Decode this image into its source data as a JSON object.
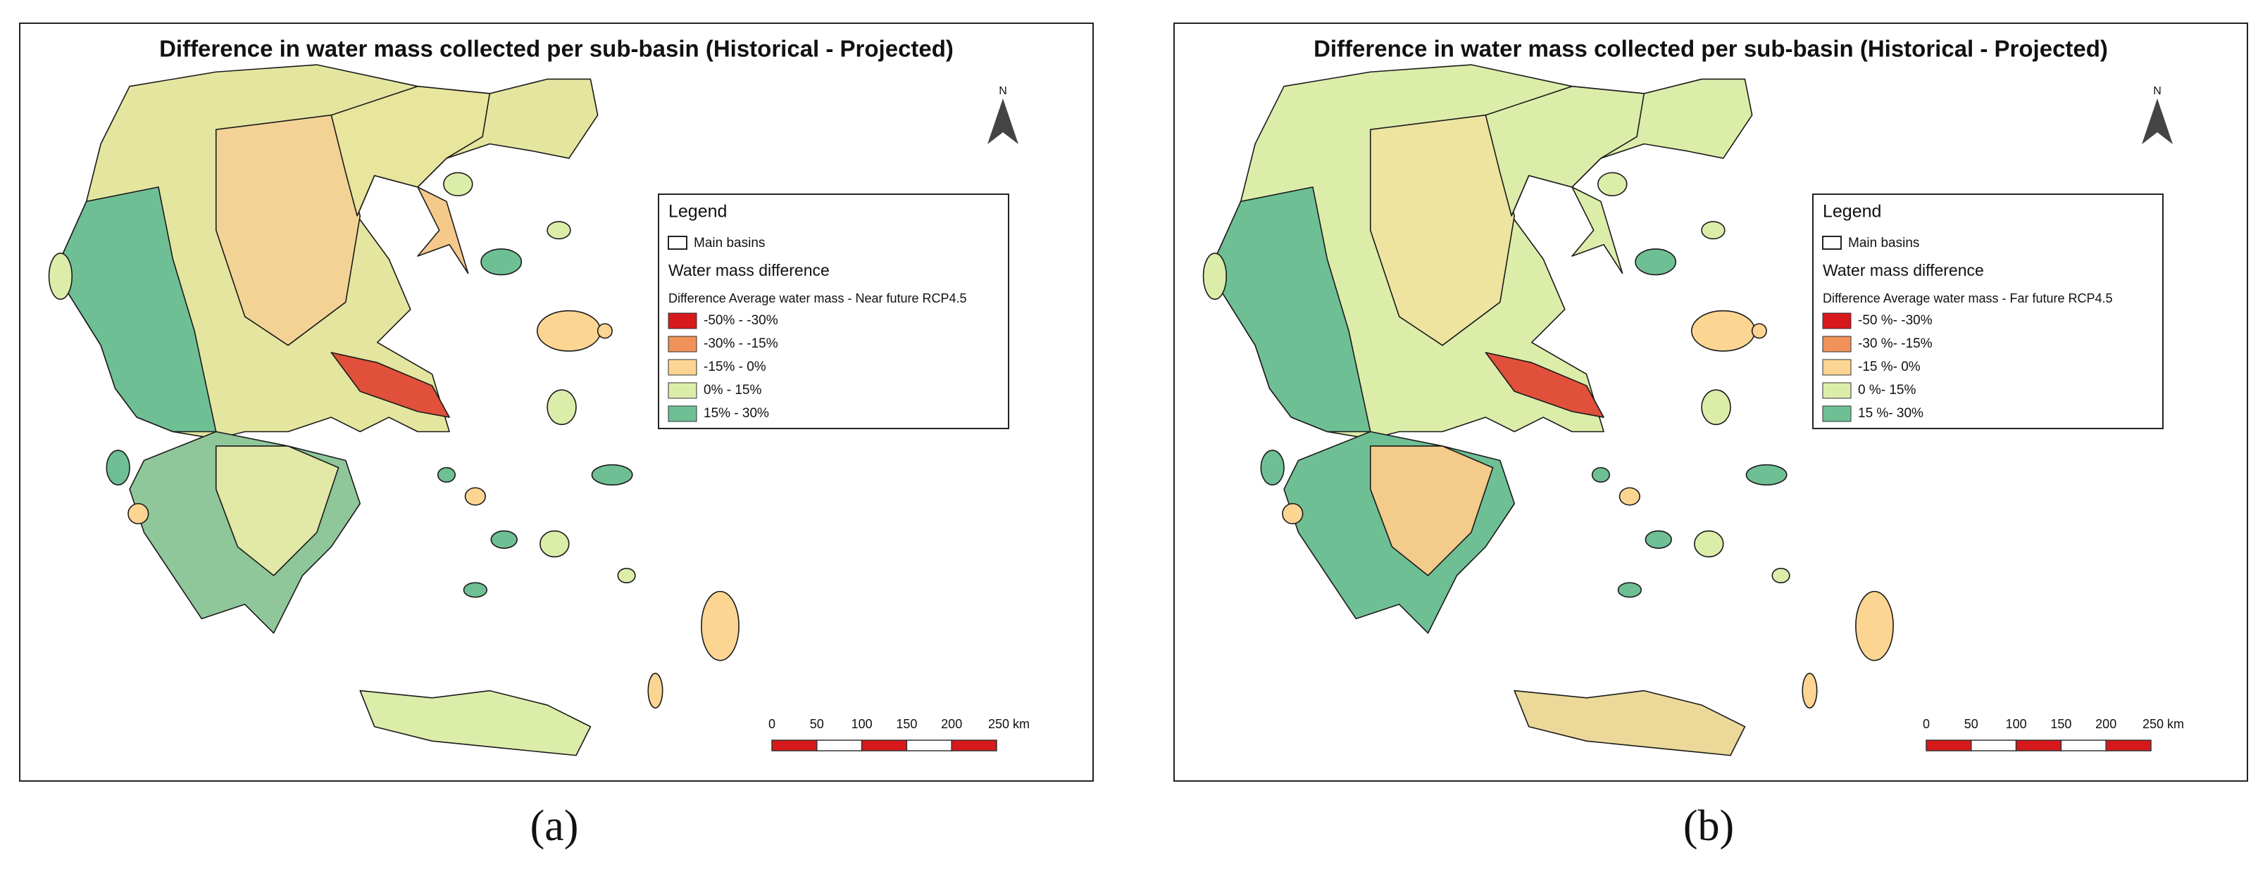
{
  "panels": [
    {
      "title": "Difference in water mass collected per sub-basin (Historical - Projected)",
      "north": "N",
      "legend": {
        "title": "Legend",
        "main_basins": "Main basins",
        "group": "Water mass difference",
        "subtitle": "Difference Average water mass - Near future RCP4.5",
        "items": [
          {
            "label": "-50% - -30%",
            "color": "#d7191c"
          },
          {
            "label": "-30% - -15%",
            "color": "#f0925a"
          },
          {
            "label": "-15% - 0%",
            "color": "#fdd592"
          },
          {
            "label": "0% - 15%",
            "color": "#dcedaa"
          },
          {
            "label": "15% - 30%",
            "color": "#6fbf95"
          }
        ]
      },
      "scale": [
        "0",
        "50",
        "100",
        "150",
        "200",
        "250 km"
      ],
      "label": "(a)"
    },
    {
      "title": "Difference in water mass collected per sub-basin (Historical - Projected)",
      "north": "N",
      "legend": {
        "title": "Legend",
        "main_basins": "Main basins",
        "group": "Water mass difference",
        "subtitle": "Difference Average water mass - Far future RCP4.5",
        "items": [
          {
            "label": "-50 %- -30%",
            "color": "#d7191c"
          },
          {
            "label": "-30 %- -15%",
            "color": "#f0925a"
          },
          {
            "label": "-15 %- 0%",
            "color": "#fdd592"
          },
          {
            "label": "0 %- 15%",
            "color": "#dcedaa"
          },
          {
            "label": "15 %- 30%",
            "color": "#6fbf95"
          }
        ]
      },
      "scale": [
        "0",
        "50",
        "100",
        "150",
        "200",
        "250 km"
      ],
      "label": "(b)"
    }
  ]
}
